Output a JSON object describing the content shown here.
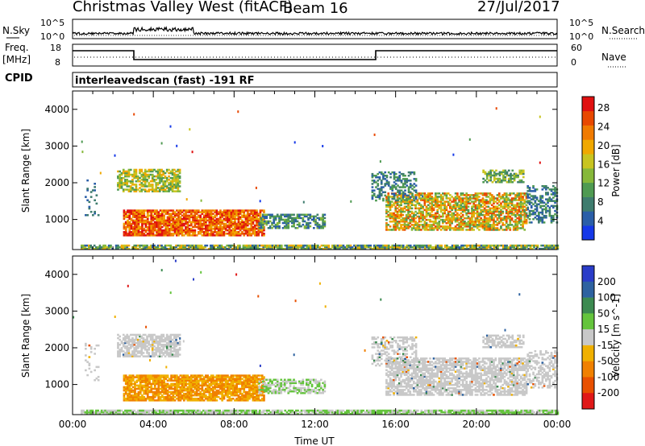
{
  "header": {
    "title": "Christmas Valley West (fitACF)",
    "beam": "Beam 16",
    "date": "27/Jul/2017"
  },
  "top_panels": {
    "nsky": {
      "label": "N.Sky",
      "right_label": "N.Search",
      "left_ticks": [
        "10^5",
        "10^0"
      ],
      "right_ticks": [
        "10^5",
        "10^0"
      ]
    },
    "freq": {
      "label_line1": "Freq.",
      "label_line2": "[MHz]",
      "left_ticks": [
        "18",
        "8"
      ],
      "right_label": "Nave",
      "right_ticks": [
        "60",
        "0"
      ]
    },
    "cpid": {
      "label": "CPID",
      "text": "interleavedscan (fast) -191 RF"
    }
  },
  "chart_data": [
    {
      "type": "heatmap",
      "name": "power",
      "ylabel": "Slant Range [km]",
      "ylim": [
        180,
        4500
      ],
      "yticks": [
        1000,
        2000,
        3000,
        4000
      ],
      "xlim": [
        0,
        24
      ],
      "colorbar": {
        "label": "Power [dB]",
        "ticks": [
          4,
          8,
          12,
          16,
          20,
          24,
          28
        ],
        "colors": [
          "#1538e8",
          "#2a5ea8",
          "#3e7c6e",
          "#4f9a52",
          "#86b83a",
          "#c8c420",
          "#f0a800",
          "#f07a00",
          "#e84800",
          "#e01010"
        ]
      }
    },
    {
      "type": "heatmap",
      "name": "velocity",
      "ylabel": "Slant Range [km]",
      "ylim": [
        180,
        4500
      ],
      "yticks": [
        1000,
        2000,
        3000,
        4000
      ],
      "xlim": [
        0,
        24
      ],
      "xlabel": "Time UT",
      "xticks": [
        "00:00",
        "04:00",
        "08:00",
        "12:00",
        "16:00",
        "20:00",
        "00:00"
      ],
      "colorbar": {
        "label": "Velocity [m s^-1]",
        "ticks": [
          "200",
          "100",
          "50",
          "15",
          "-15",
          "-50",
          "-100",
          "-200"
        ],
        "colors": [
          "#2a3cc8",
          "#2e62a0",
          "#3c8a50",
          "#64c43c",
          "#c8c8c8",
          "#f0b000",
          "#f08000",
          "#e85000",
          "#e01818"
        ]
      }
    }
  ]
}
